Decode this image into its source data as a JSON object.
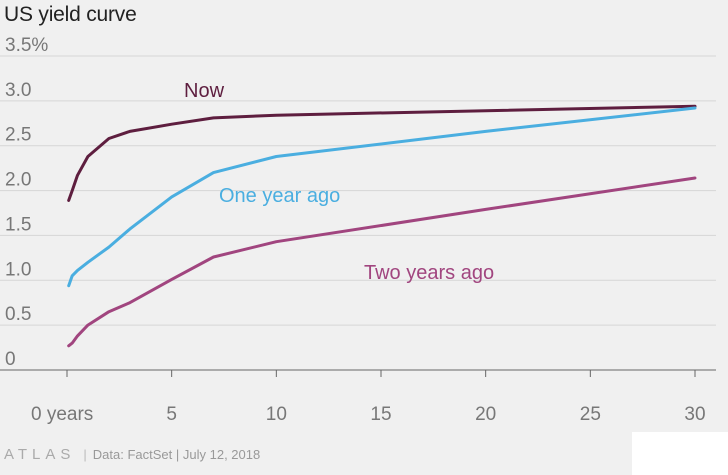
{
  "chart_data": {
    "type": "line",
    "title": "US yield curve",
    "x_ticks": [
      {
        "value": 0,
        "label": "0 years"
      },
      {
        "value": 5,
        "label": "5"
      },
      {
        "value": 10,
        "label": "10"
      },
      {
        "value": 15,
        "label": "15"
      },
      {
        "value": 20,
        "label": "20"
      },
      {
        "value": 25,
        "label": "25"
      },
      {
        "value": 30,
        "label": "30"
      }
    ],
    "y_ticks": [
      {
        "value": 0,
        "label": "0"
      },
      {
        "value": 0.5,
        "label": "0.5"
      },
      {
        "value": 1.0,
        "label": "1.0"
      },
      {
        "value": 1.5,
        "label": "1.5"
      },
      {
        "value": 2.0,
        "label": "2.0"
      },
      {
        "value": 2.5,
        "label": "2.5"
      },
      {
        "value": 3.0,
        "label": "3.0"
      },
      {
        "value": 3.5,
        "label": "3.5%"
      }
    ],
    "xlim": [
      0,
      30
    ],
    "ylim": [
      0,
      3.5
    ],
    "grid": true,
    "series": [
      {
        "name": "Now",
        "color": "#5e1e3f",
        "x": [
          0.083,
          0.25,
          0.5,
          1,
          2,
          3,
          5,
          7,
          10,
          20,
          30
        ],
        "y": [
          1.89,
          2.0,
          2.17,
          2.38,
          2.58,
          2.66,
          2.74,
          2.81,
          2.84,
          2.89,
          2.94
        ]
      },
      {
        "name": "One year ago",
        "color": "#4aaee0",
        "x": [
          0.083,
          0.25,
          0.5,
          1,
          2,
          3,
          5,
          7,
          10,
          20,
          30
        ],
        "y": [
          0.94,
          1.05,
          1.11,
          1.2,
          1.37,
          1.57,
          1.93,
          2.2,
          2.38,
          2.66,
          2.92
        ]
      },
      {
        "name": "Two years ago",
        "color": "#a1457f",
        "x": [
          0.083,
          0.25,
          0.5,
          1,
          2,
          3,
          5,
          7,
          10,
          20,
          30
        ],
        "y": [
          0.27,
          0.3,
          0.38,
          0.5,
          0.65,
          0.75,
          1.01,
          1.26,
          1.43,
          1.79,
          2.14
        ]
      }
    ]
  },
  "footer": {
    "logo": "ATLAS",
    "source": "Data:  FactSet | July 12, 2018"
  }
}
